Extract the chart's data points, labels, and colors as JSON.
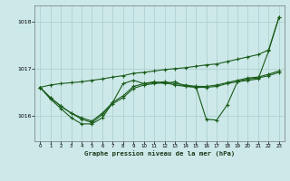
{
  "title": "Graphe pression niveau de la mer (hPa)",
  "background_color": "#cce8e8",
  "grid_color": "#aacece",
  "line_color": "#1a5c1a",
  "xlim": [
    -0.5,
    23.5
  ],
  "ylim": [
    1015.45,
    1018.35
  ],
  "yticks": [
    1016,
    1017,
    1018
  ],
  "xticks": [
    0,
    1,
    2,
    3,
    4,
    5,
    6,
    7,
    8,
    9,
    10,
    11,
    12,
    13,
    14,
    15,
    16,
    17,
    18,
    19,
    20,
    21,
    22,
    23
  ],
  "series_straight": [
    1016.6,
    1016.65,
    1016.68,
    1016.7,
    1016.72,
    1016.75,
    1016.78,
    1016.82,
    1016.85,
    1016.9,
    1016.92,
    1016.95,
    1016.98,
    1017.0,
    1017.02,
    1017.05,
    1017.08,
    1017.1,
    1017.15,
    1017.2,
    1017.25,
    1017.3,
    1017.4,
    1018.1
  ],
  "series_band1": [
    1016.6,
    1016.38,
    1016.2,
    1016.05,
    1015.95,
    1015.88,
    1016.05,
    1016.28,
    1016.42,
    1016.62,
    1016.68,
    1016.7,
    1016.72,
    1016.68,
    1016.65,
    1016.62,
    1016.62,
    1016.65,
    1016.7,
    1016.75,
    1016.8,
    1016.82,
    1016.88,
    1016.95
  ],
  "series_band2": [
    1016.6,
    1016.38,
    1016.2,
    1016.05,
    1015.92,
    1015.85,
    1016.02,
    1016.25,
    1016.38,
    1016.58,
    1016.65,
    1016.68,
    1016.7,
    1016.65,
    1016.62,
    1016.6,
    1016.6,
    1016.62,
    1016.68,
    1016.72,
    1016.78,
    1016.8,
    1016.85,
    1016.92
  ],
  "series_wavy": [
    1016.6,
    1016.35,
    1016.15,
    1015.95,
    1015.82,
    1015.82,
    1015.95,
    1016.28,
    1016.68,
    1016.75,
    1016.68,
    1016.72,
    1016.68,
    1016.72,
    1016.62,
    1016.62,
    1015.92,
    1015.9,
    1016.22,
    1016.72,
    1016.75,
    1016.78,
    1017.38,
    1018.1
  ]
}
